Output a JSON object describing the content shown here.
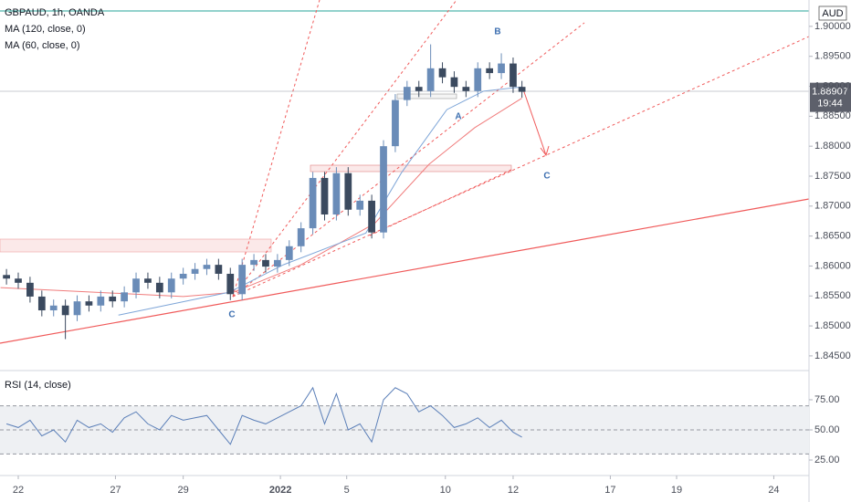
{
  "chart_data": [
    {
      "type": "candlestick",
      "title": "GBPAUD, 1h, OANDA",
      "x": [
        -8,
        0,
        8,
        16,
        24,
        32,
        40,
        48,
        56,
        64,
        72,
        80,
        88,
        96,
        104,
        112,
        120,
        128,
        136,
        144,
        152,
        160,
        168,
        176,
        184,
        192,
        200,
        208,
        216,
        224,
        232,
        240,
        248,
        256,
        264,
        272,
        280,
        288,
        296,
        304,
        312,
        320,
        328,
        336,
        342
      ],
      "open": [
        1.8585,
        1.8579,
        1.8572,
        1.8549,
        1.8526,
        1.8534,
        1.8518,
        1.8541,
        1.8534,
        1.8549,
        1.8541,
        1.8556,
        1.8579,
        1.8572,
        1.8556,
        1.8579,
        1.8587,
        1.8595,
        1.8602,
        1.8587,
        1.8553,
        1.8602,
        1.861,
        1.8599,
        1.861,
        1.8633,
        1.8663,
        1.8747,
        1.8686,
        1.8755,
        1.8694,
        1.8709,
        1.8656,
        1.88,
        1.8877,
        1.8899,
        1.8892,
        1.893,
        1.8915,
        1.8899,
        1.8892,
        1.893,
        1.8922,
        1.8938,
        1.8899
      ],
      "high": [
        1.8595,
        1.8589,
        1.8582,
        1.8559,
        1.8544,
        1.8544,
        1.8551,
        1.8551,
        1.8559,
        1.8559,
        1.8566,
        1.8589,
        1.8589,
        1.8582,
        1.8589,
        1.8597,
        1.8605,
        1.8612,
        1.8612,
        1.8597,
        1.8612,
        1.862,
        1.862,
        1.862,
        1.8643,
        1.8673,
        1.8757,
        1.8757,
        1.8765,
        1.8765,
        1.8719,
        1.8719,
        1.881,
        1.8887,
        1.8909,
        1.8909,
        1.897,
        1.894,
        1.8925,
        1.8909,
        1.894,
        1.894,
        1.8955,
        1.8948,
        1.8909
      ],
      "low": [
        1.8569,
        1.8562,
        1.8539,
        1.8516,
        1.8516,
        1.8478,
        1.8508,
        1.8524,
        1.8524,
        1.8531,
        1.8531,
        1.8546,
        1.8562,
        1.8546,
        1.8546,
        1.8569,
        1.8577,
        1.8585,
        1.8577,
        1.8543,
        1.8543,
        1.8592,
        1.8589,
        1.8589,
        1.86,
        1.8623,
        1.8653,
        1.8676,
        1.8676,
        1.8684,
        1.8684,
        1.8646,
        1.8646,
        1.879,
        1.8867,
        1.8882,
        1.8882,
        1.8905,
        1.8889,
        1.8882,
        1.8882,
        1.8912,
        1.8912,
        1.8889,
        1.8881
      ],
      "close": [
        1.8579,
        1.8572,
        1.8549,
        1.8526,
        1.8534,
        1.8518,
        1.8541,
        1.8534,
        1.8549,
        1.8541,
        1.8556,
        1.8579,
        1.8572,
        1.8556,
        1.8579,
        1.8587,
        1.8595,
        1.8602,
        1.8587,
        1.8553,
        1.8602,
        1.861,
        1.8599,
        1.861,
        1.8633,
        1.8663,
        1.8747,
        1.8686,
        1.8755,
        1.8694,
        1.8709,
        1.8656,
        1.88,
        1.8877,
        1.8899,
        1.8892,
        1.893,
        1.8915,
        1.8899,
        1.8892,
        1.893,
        1.8922,
        1.8938,
        1.8899,
        1.88907
      ],
      "up_color": "#6a8cb8",
      "down_color": "#3b4a5f",
      "series": [
        {
          "name": "MA (120, close, 0)",
          "color": "#f07c7c",
          "x": [
            -12,
            112,
            146,
            192,
            242,
            279,
            310,
            342
          ],
          "values": [
            1.8564,
            1.8549,
            1.8556,
            1.8602,
            1.8671,
            1.877,
            1.8831,
            1.888
          ]
        },
        {
          "name": "MA (60, close, 0)",
          "color": "#7fa6d8",
          "x": [
            68,
            143,
            180,
            236,
            260,
            291,
            316,
            342
          ],
          "values": [
            1.8518,
            1.8556,
            1.8602,
            1.8655,
            1.8755,
            1.8861,
            1.8892,
            1.8899
          ]
        }
      ],
      "annotations": [
        "A",
        "B",
        "C",
        "C"
      ],
      "last_price": 1.88907,
      "countdown": "19:44",
      "currency": "AUD",
      "xlim": [
        -12.4,
        536.9
      ],
      "xticks": [
        {
          "value": 0,
          "label": "22"
        },
        {
          "value": 66,
          "label": "27"
        },
        {
          "value": 112,
          "label": "29"
        },
        {
          "value": 178,
          "label": "2022"
        },
        {
          "value": 223,
          "label": "5"
        },
        {
          "value": 290,
          "label": "10"
        },
        {
          "value": 336,
          "label": "12"
        },
        {
          "value": 402,
          "label": "17"
        },
        {
          "value": 447,
          "label": "19"
        },
        {
          "value": 513,
          "label": "24"
        }
      ],
      "ylim": [
        1.8427,
        1.9044
      ],
      "yticks": [
        {
          "value": 1.9,
          "label": "1.90000"
        },
        {
          "value": 1.895,
          "label": "1.89500"
        },
        {
          "value": 1.89,
          "label": "1.89000"
        },
        {
          "value": 1.885,
          "label": "1.88500"
        },
        {
          "value": 1.88,
          "label": "1.88000"
        },
        {
          "value": 1.875,
          "label": "1.87500"
        },
        {
          "value": 1.87,
          "label": "1.87000"
        },
        {
          "value": 1.865,
          "label": "1.86500"
        },
        {
          "value": 1.86,
          "label": "1.86000"
        },
        {
          "value": 1.855,
          "label": "1.85500"
        },
        {
          "value": 1.85,
          "label": "1.85000"
        },
        {
          "value": 1.845,
          "label": "1.84500"
        }
      ]
    },
    {
      "type": "line",
      "title": "RSI (14, close)",
      "x": [
        -8,
        0,
        8,
        16,
        24,
        32,
        40,
        48,
        56,
        64,
        72,
        80,
        88,
        96,
        104,
        112,
        120,
        128,
        136,
        144,
        152,
        160,
        168,
        176,
        184,
        192,
        200,
        208,
        216,
        224,
        232,
        240,
        248,
        256,
        264,
        272,
        280,
        288,
        296,
        304,
        312,
        320,
        328,
        336,
        342
      ],
      "series": [
        {
          "color": "#5b7fb8",
          "values": [
            55,
            52,
            58,
            45,
            50,
            40,
            58,
            52,
            55,
            48,
            60,
            65,
            55,
            50,
            62,
            58,
            60,
            62,
            50,
            38,
            62,
            58,
            55,
            60,
            65,
            70,
            85,
            55,
            80,
            50,
            55,
            40,
            75,
            85,
            80,
            65,
            70,
            62,
            52,
            55,
            60,
            52,
            58,
            48,
            44
          ]
        }
      ],
      "levels": [
        70,
        50,
        30
      ],
      "xlim": [
        -12.4,
        536.9
      ],
      "ylim": [
        12.9,
        97.7
      ],
      "yticks": [
        {
          "value": 25,
          "label": "25.00"
        },
        {
          "value": 50,
          "label": "50.00"
        },
        {
          "value": 75,
          "label": "75.00"
        }
      ]
    }
  ]
}
